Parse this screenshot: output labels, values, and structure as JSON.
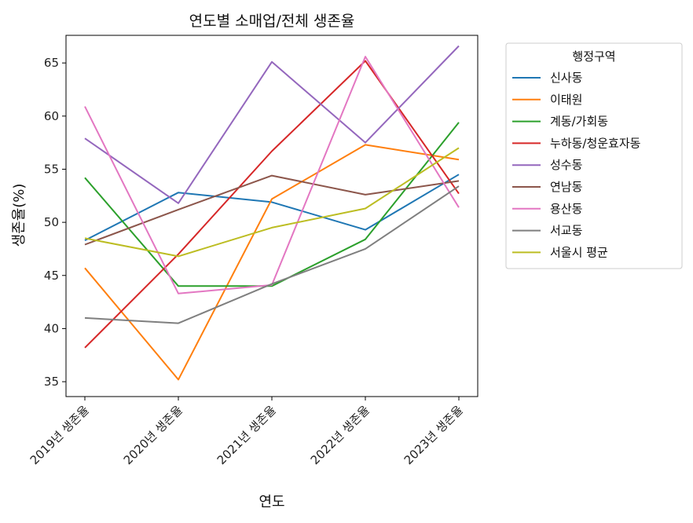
{
  "chart_data": {
    "type": "line",
    "title": "연도별 소매업/전체 생존율",
    "xlabel": "연도",
    "ylabel": "생존율(%)",
    "categories": [
      "2019년 생존율",
      "2020년 생존율",
      "2021년 생존율",
      "2022년 생존율",
      "2023년 생존율"
    ],
    "ylim": [
      33.6,
      67.6
    ],
    "yticks": [
      35,
      40,
      45,
      50,
      55,
      60,
      65
    ],
    "grid": false,
    "legend": {
      "title": "행정구역",
      "placement": "outside-right"
    },
    "series": [
      {
        "name": "신사동",
        "color": "#1f77b4",
        "values": [
          48.3,
          52.8,
          51.9,
          49.3,
          54.5
        ]
      },
      {
        "name": "이태원",
        "color": "#ff7f0e",
        "values": [
          45.7,
          35.2,
          52.2,
          57.3,
          55.9
        ]
      },
      {
        "name": "계동/가회동",
        "color": "#2ca02c",
        "values": [
          54.2,
          44.0,
          44.0,
          48.4,
          59.4
        ]
      },
      {
        "name": "누하동/청운효자동",
        "color": "#d62728",
        "values": [
          38.2,
          47.0,
          56.7,
          65.2,
          52.7
        ]
      },
      {
        "name": "성수동",
        "color": "#9467bd",
        "values": [
          57.9,
          51.8,
          65.1,
          57.5,
          66.6
        ]
      },
      {
        "name": "연남동",
        "color": "#8c564b",
        "values": [
          47.9,
          51.2,
          54.4,
          52.6,
          53.9
        ]
      },
      {
        "name": "용산동",
        "color": "#e377c2",
        "values": [
          60.9,
          43.3,
          44.1,
          65.6,
          51.4
        ]
      },
      {
        "name": "서교동",
        "color": "#7f7f7f",
        "values": [
          41.0,
          40.5,
          44.2,
          47.5,
          53.4
        ]
      },
      {
        "name": "서울시 평균",
        "color": "#bcbd22",
        "values": [
          48.5,
          46.8,
          49.5,
          51.3,
          57.0
        ]
      }
    ]
  }
}
